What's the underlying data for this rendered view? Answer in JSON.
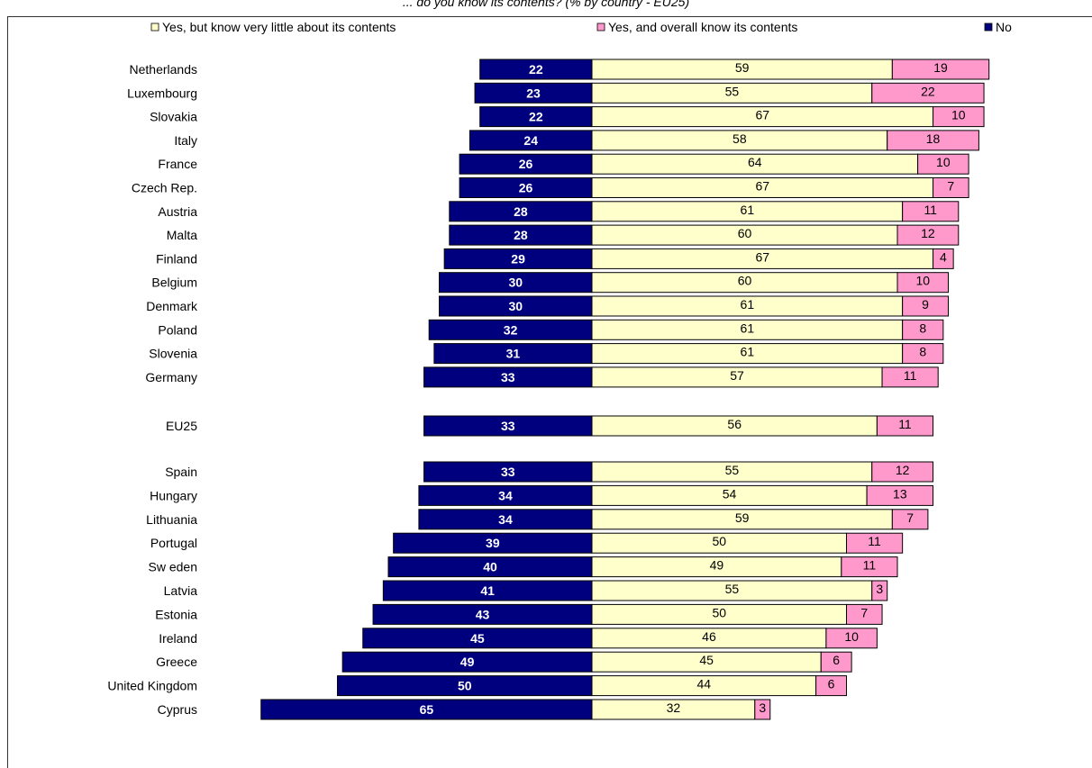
{
  "chart_data": {
    "type": "bar",
    "stacked": true,
    "orientation": "horizontal",
    "title": "... do you know its contents? (% by country - EU25)",
    "categories": [
      "Netherlands",
      "Luxembourg",
      "Slovakia",
      "Italy",
      "France",
      "Czech Rep.",
      "Austria",
      "Malta",
      "Finland",
      "Belgium",
      "Denmark",
      "Poland",
      "Slovenia",
      "Germany",
      "EU25",
      "Spain",
      "Hungary",
      "Lithuania",
      "Portugal",
      "Sw eden",
      "Latvia",
      "Estonia",
      "Ireland",
      "Greece",
      "United Kingdom",
      "Cyprus"
    ],
    "series": [
      {
        "name": "No",
        "color": "#00007f",
        "values": [
          22,
          23,
          22,
          24,
          26,
          26,
          28,
          28,
          29,
          30,
          30,
          32,
          31,
          33,
          33,
          33,
          34,
          34,
          39,
          40,
          41,
          43,
          45,
          49,
          50,
          65
        ]
      },
      {
        "name": "Yes, but know  very little about its contents",
        "color": "#ffffcc",
        "values": [
          59,
          55,
          67,
          58,
          64,
          67,
          61,
          60,
          67,
          60,
          61,
          61,
          61,
          57,
          56,
          55,
          54,
          59,
          50,
          49,
          55,
          50,
          46,
          45,
          44,
          32
        ]
      },
      {
        "name": "Yes, and overall know  its contents",
        "color": "#ff99cc",
        "values": [
          19,
          22,
          10,
          18,
          10,
          7,
          11,
          12,
          4,
          10,
          9,
          8,
          8,
          11,
          11,
          12,
          13,
          7,
          11,
          11,
          3,
          7,
          10,
          6,
          6,
          3
        ]
      }
    ],
    "legend": {
      "position": "top",
      "order": [
        1,
        2,
        0
      ]
    },
    "grid": false
  }
}
